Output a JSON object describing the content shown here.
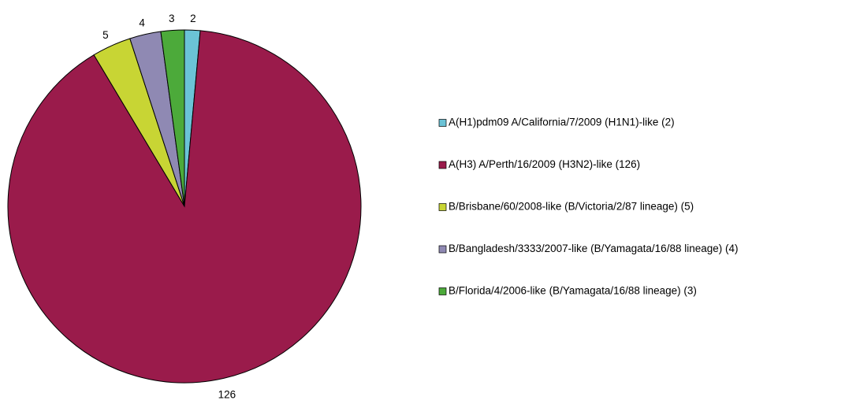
{
  "chart_data": {
    "type": "pie",
    "categories": [
      "A(H1)pdm09  A/California/7/2009 (H1N1)-like (2)",
      "A(H3) A/Perth/16/2009 (H3N2)-like (126)",
      "B/Brisbane/60/2008-like (B/Victoria/2/87 lineage) (5)",
      "B/Bangladesh/3333/2007-like (B/Yamagata/16/88 lineage) (4)",
      "B/Florida/4/2006-like (B/Yamagata/16/88 lineage) (3)"
    ],
    "values": [
      2,
      126,
      5,
      4,
      3
    ],
    "colors": [
      "#6bc3d6",
      "#9a1b4b",
      "#c8d534",
      "#8f89b3",
      "#4caa3a"
    ],
    "legend": "right"
  }
}
